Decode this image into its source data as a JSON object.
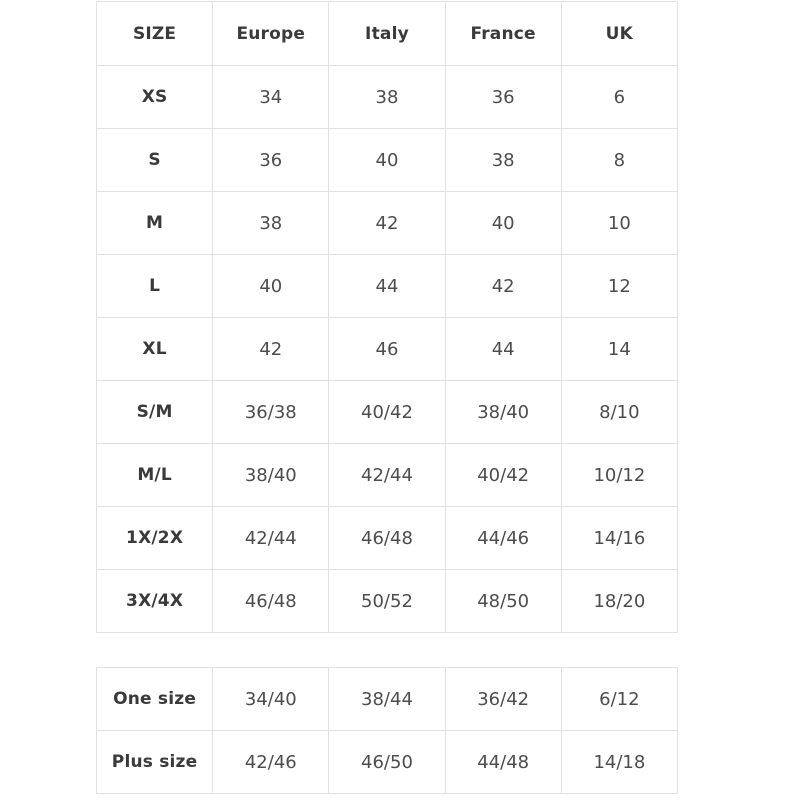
{
  "colors": {
    "background": "#ffffff",
    "border": "#e1e1e1",
    "header_text": "#3a3a3a",
    "value_text": "#4d4d4d"
  },
  "table1": {
    "headers": [
      "SIZE",
      "Europe",
      "Italy",
      "France",
      "UK"
    ],
    "rows": [
      {
        "label": "XS",
        "values": [
          "34",
          "38",
          "36",
          "6"
        ]
      },
      {
        "label": "S",
        "values": [
          "36",
          "40",
          "38",
          "8"
        ]
      },
      {
        "label": "M",
        "values": [
          "38",
          "42",
          "40",
          "10"
        ]
      },
      {
        "label": "L",
        "values": [
          "40",
          "44",
          "42",
          "12"
        ]
      },
      {
        "label": "XL",
        "values": [
          "42",
          "46",
          "44",
          "14"
        ]
      },
      {
        "label": "S/M",
        "values": [
          "36/38",
          "40/42",
          "38/40",
          "8/10"
        ]
      },
      {
        "label": "M/L",
        "values": [
          "38/40",
          "42/44",
          "40/42",
          "10/12"
        ]
      },
      {
        "label": "1X/2X",
        "values": [
          "42/44",
          "46/48",
          "44/46",
          "14/16"
        ]
      },
      {
        "label": "3X/4X",
        "values": [
          "46/48",
          "50/52",
          "48/50",
          "18/20"
        ]
      }
    ]
  },
  "table2": {
    "rows": [
      {
        "label": "One size",
        "values": [
          "34/40",
          "38/44",
          "36/42",
          "6/12"
        ]
      },
      {
        "label": "Plus size",
        "values": [
          "42/46",
          "46/50",
          "44/48",
          "14/18"
        ]
      }
    ]
  }
}
